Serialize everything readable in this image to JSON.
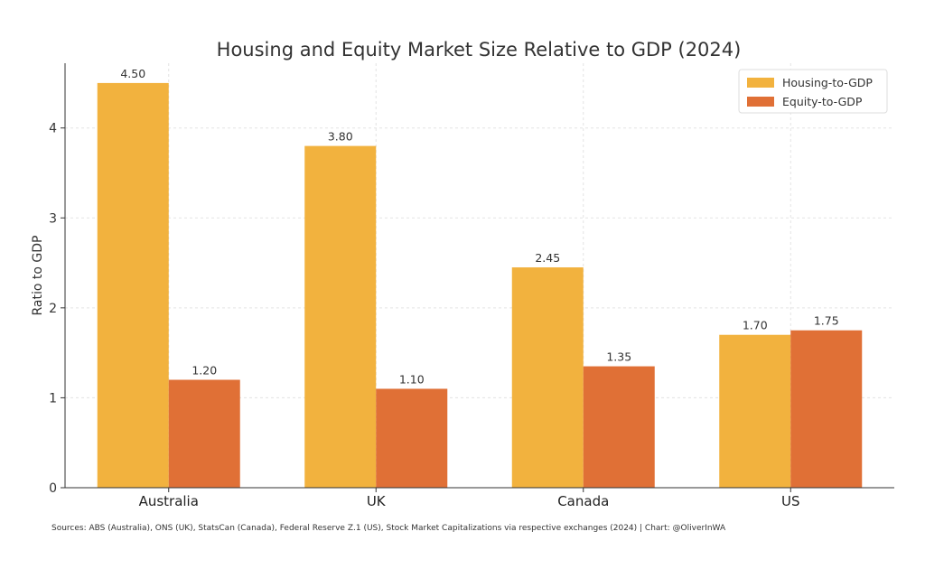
{
  "chart_data": {
    "type": "bar",
    "title": "Housing and Equity Market Size Relative to GDP (2024)",
    "xlabel": "",
    "ylabel": "Ratio to GDP",
    "categories": [
      "Australia",
      "UK",
      "Canada",
      "US"
    ],
    "series": [
      {
        "name": "Housing-to-GDP",
        "values": [
          4.5,
          3.8,
          2.45,
          1.7
        ],
        "color": "#F2B23E"
      },
      {
        "name": "Equity-to-GDP",
        "values": [
          1.2,
          1.1,
          1.35,
          1.75
        ],
        "color": "#E07036"
      }
    ],
    "ylim": [
      0,
      4.72
    ],
    "yticks": [
      0,
      1,
      2,
      3,
      4
    ],
    "grid": true,
    "legend": "top-right",
    "data_labels": true,
    "source": "Sources: ABS (Australia), ONS (UK), StatsCan (Canada), Federal Reserve Z.1 (US), Stock Market Capitalizations via respective exchanges (2024) | Chart: @OliverInWA"
  }
}
